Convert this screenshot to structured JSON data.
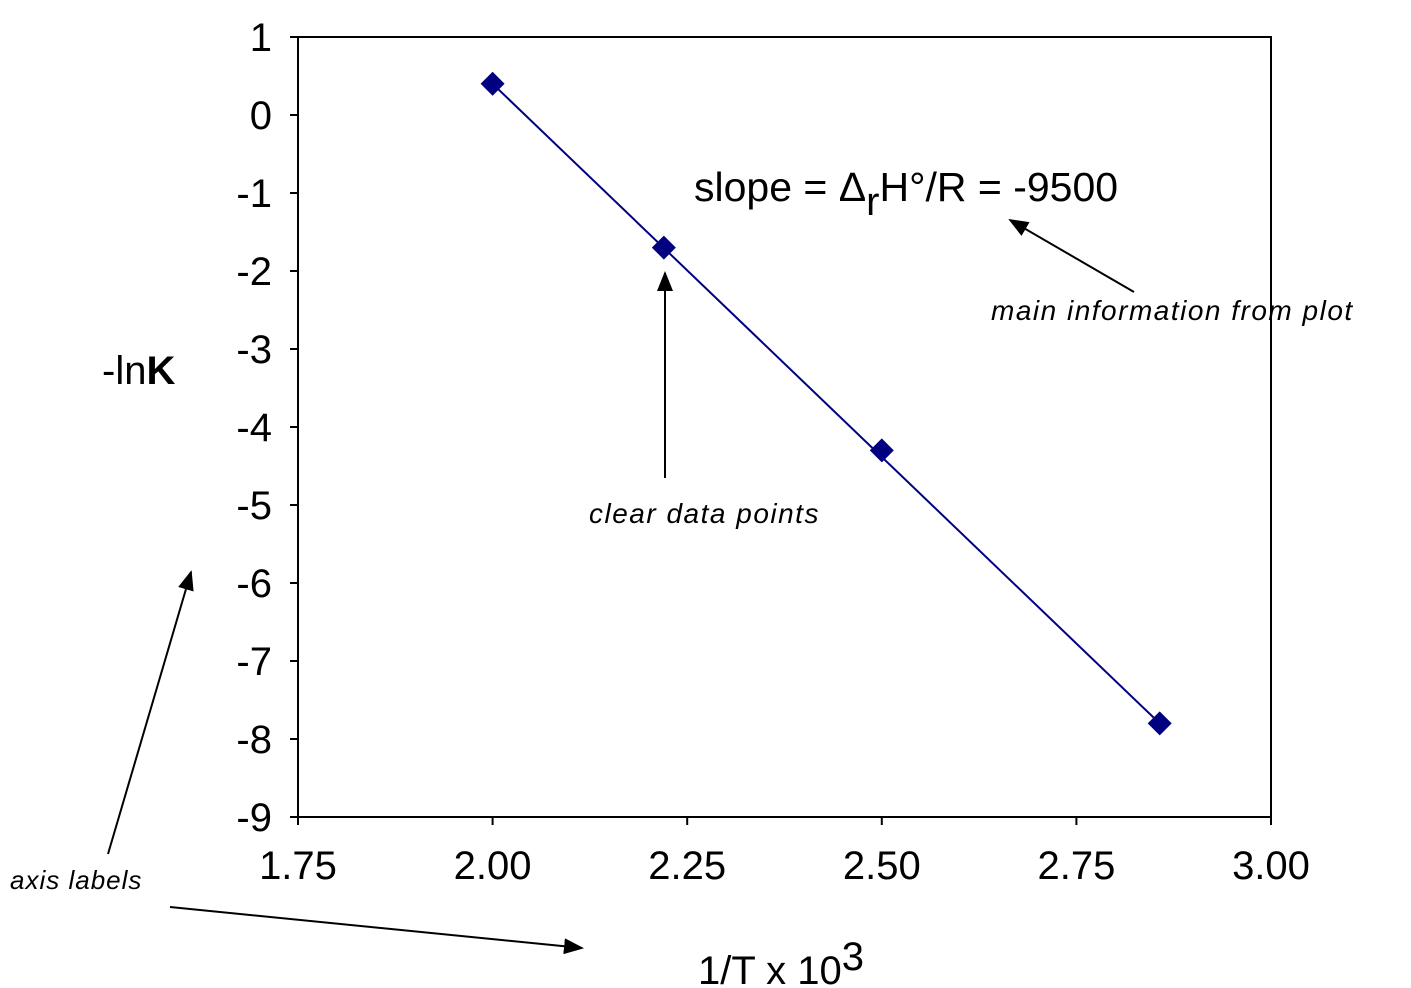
{
  "chart_data": {
    "type": "scatter",
    "x": [
      2.0,
      2.22,
      2.5,
      2.857
    ],
    "y": [
      0.4,
      -1.7,
      -4.3,
      -7.8
    ],
    "xlim": [
      1.75,
      3.0
    ],
    "ylim": [
      -9,
      1
    ],
    "xticks": [
      "1.75",
      "2.00",
      "2.25",
      "2.50",
      "2.75",
      "3.00"
    ],
    "yticks": [
      "1",
      "0",
      "-1",
      "-2",
      "-3",
      "-4",
      "-5",
      "-6",
      "-7",
      "-8",
      "-9"
    ],
    "xlabel": {
      "main": "1/T  x 10",
      "sup": "3"
    },
    "ylabel": {
      "main": "-ln",
      "bold": "K"
    },
    "grid": false,
    "legend": "none",
    "fit_line": true,
    "annotations": {
      "slope": {
        "a": "slope = Δ",
        "sub": "r",
        "b": "H°/R = -9500"
      },
      "main_info": "main information from plot",
      "data_points": "clear data points",
      "axis_labels": "axis labels"
    },
    "colors": {
      "marker": "#000080",
      "line": "#000080",
      "axes": "#000000"
    }
  }
}
